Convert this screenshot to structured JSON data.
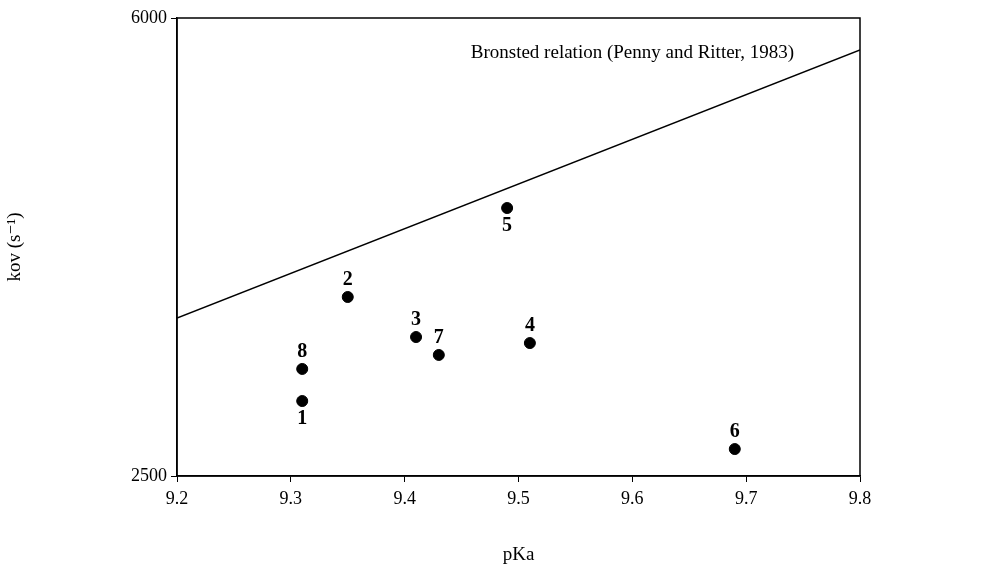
{
  "chart_data": {
    "type": "scatter",
    "x_label": "pKa",
    "y_label": "kov (s⁻¹)",
    "xlim": [
      9.2,
      9.8
    ],
    "xticks": [
      9.2,
      9.3,
      9.4,
      9.5,
      9.6,
      9.7,
      9.8
    ],
    "ylim": [
      2500,
      6000
    ],
    "yticks": [
      2500,
      6000
    ],
    "grid": false,
    "series": [
      {
        "name": "Bronsted relation (Penny and Ritter, 1983)",
        "type": "line",
        "color": "#000000",
        "line_style": "solid",
        "x": [
          9.2,
          9.8
        ],
        "values": [
          3707,
          5756
        ]
      },
      {
        "type": "scatter",
        "color": "#000000",
        "marker": "circle",
        "x": [
          9.31,
          9.35,
          9.41,
          9.51,
          9.49,
          9.69,
          9.43,
          9.31
        ],
        "values": [
          3073,
          3868,
          3562,
          3516,
          4548,
          2706,
          3425,
          3318
        ],
        "point_labels": [
          "1",
          "2",
          "3",
          "4",
          "5",
          "6",
          "7",
          "8"
        ]
      }
    ]
  }
}
